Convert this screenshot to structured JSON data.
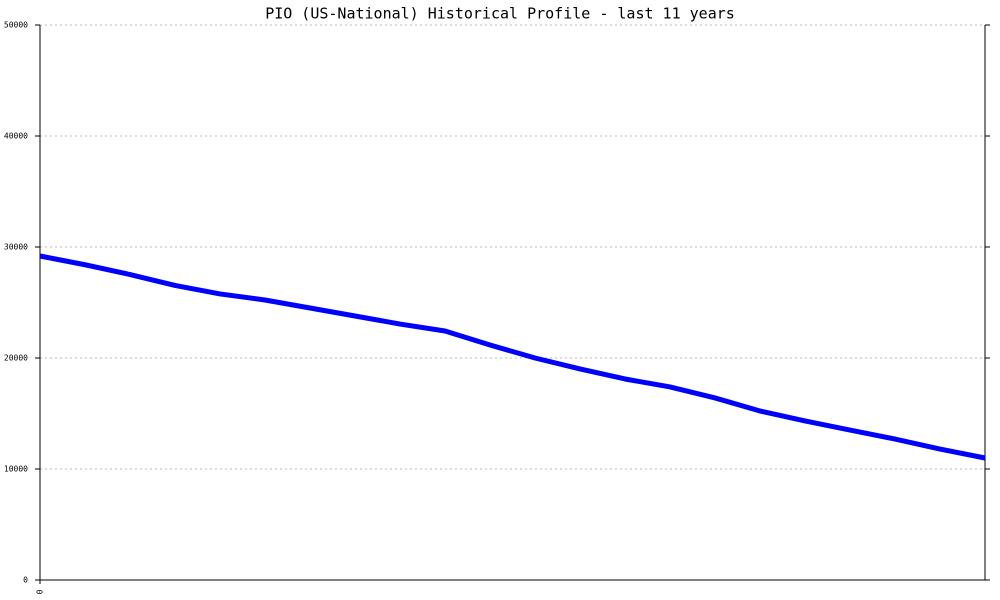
{
  "chart_data": {
    "type": "line",
    "title": "PIO (US-National) Historical Profile - last 11 years",
    "x": [
      0,
      1,
      2,
      3,
      4,
      5,
      6,
      7,
      8,
      9,
      10,
      11,
      12,
      13,
      14,
      15,
      16,
      17,
      18,
      19,
      20,
      21
    ],
    "series": [
      {
        "color": "#0000ff",
        "values": [
          29190,
          28400,
          27520,
          26540,
          25770,
          25225,
          24505,
          23785,
          23060,
          22430,
          21170,
          20000,
          19010,
          18110,
          17390,
          16400,
          15225,
          14325,
          13510,
          12700,
          11800,
          10990
        ]
      }
    ],
    "xlim": [
      0,
      21
    ],
    "xticks": [
      0
    ],
    "ylim": [
      0,
      50000
    ],
    "yticks": [
      0,
      10000,
      20000,
      30000,
      40000,
      50000
    ],
    "grid": true
  }
}
